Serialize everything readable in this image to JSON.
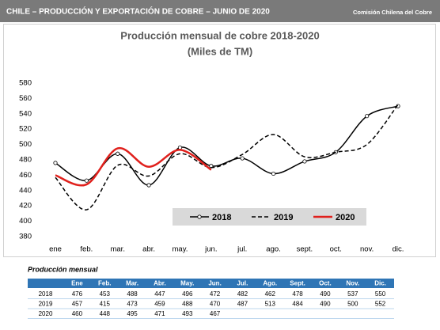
{
  "header": {
    "title": "CHILE – PRODUCCIÓN Y EXPORTACIÓN DE COBRE – JUNIO DE 2020",
    "source": "Comisión Chilena del Cobre"
  },
  "chart_data": {
    "type": "line",
    "title": "Producción mensual de cobre 2018-2020",
    "subtitle": "(Miles de TM)",
    "categories": [
      "ene",
      "feb.",
      "mar.",
      "abr.",
      "may.",
      "jun.",
      "jul.",
      "ago.",
      "sept.",
      "oct.",
      "nov.",
      "dic."
    ],
    "series": [
      {
        "name": "2018",
        "color": "#000000",
        "line_style": "solid",
        "markers": true,
        "values": [
          476,
          453,
          488,
          447,
          496,
          472,
          482,
          462,
          478,
          490,
          537,
          550
        ]
      },
      {
        "name": "2019",
        "color": "#000000",
        "line_style": "dashed",
        "markers": false,
        "values": [
          457,
          415,
          473,
          459,
          488,
          470,
          487,
          513,
          484,
          490,
          500,
          552
        ]
      },
      {
        "name": "2020",
        "color": "#e0201c",
        "line_style": "solid",
        "markers": false,
        "values": [
          460,
          448,
          495,
          471,
          493,
          467,
          null,
          null,
          null,
          null,
          null,
          null
        ]
      }
    ],
    "ylim": [
      380,
      580
    ],
    "yticks": [
      380,
      400,
      420,
      440,
      460,
      480,
      500,
      520,
      540,
      560,
      580
    ],
    "grid": false,
    "legend": "bottom-right"
  },
  "table": {
    "title": "Producción mensual",
    "header": [
      "Ene",
      "Feb.",
      "Mar.",
      "Abr.",
      "May.",
      "Jun.",
      "Jul.",
      "Ago.",
      "Sept.",
      "Oct.",
      "Nov.",
      "Dic."
    ]
  }
}
